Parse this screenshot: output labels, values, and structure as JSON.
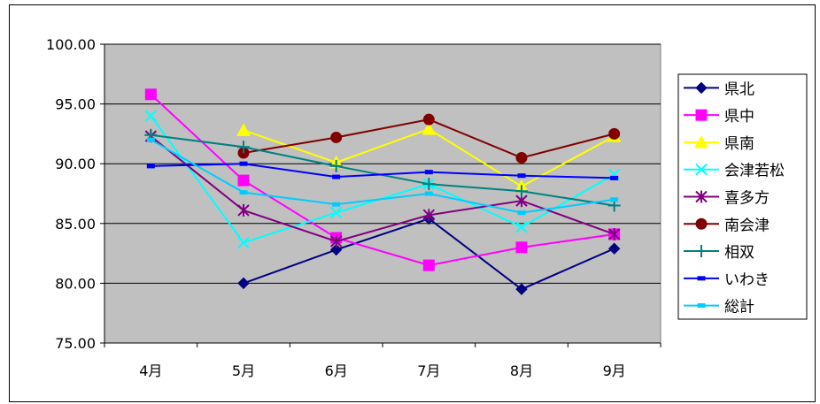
{
  "chart_data": {
    "type": "line",
    "title": "",
    "xlabel": "",
    "ylabel": "",
    "categories": [
      "4月",
      "5月",
      "6月",
      "7月",
      "8月",
      "9月"
    ],
    "ylim": [
      75,
      100
    ],
    "yticks": [
      "75.00",
      "80.00",
      "85.00",
      "90.00",
      "95.00",
      "100.00"
    ],
    "grid": true,
    "legend_position": "right",
    "plot_background": "#c0c0c0",
    "series": [
      {
        "name": "県北",
        "color": "#000080",
        "marker": "diamond",
        "values": [
          null,
          80.0,
          82.8,
          85.4,
          79.5,
          82.9
        ]
      },
      {
        "name": "県中",
        "color": "#ff00ff",
        "marker": "square",
        "values": [
          95.8,
          88.6,
          83.8,
          81.5,
          83.0,
          84.1
        ]
      },
      {
        "name": "県南",
        "color": "#ffff00",
        "marker": "triangle",
        "values": [
          null,
          92.8,
          90.1,
          92.9,
          88.1,
          92.3
        ]
      },
      {
        "name": "会津若松",
        "color": "#00ffff",
        "marker": "x",
        "values": [
          94.0,
          83.4,
          85.9,
          88.3,
          84.7,
          89.1
        ]
      },
      {
        "name": "喜多方",
        "color": "#800080",
        "marker": "star",
        "values": [
          92.3,
          86.1,
          83.5,
          85.7,
          86.9,
          84.1
        ]
      },
      {
        "name": "南会津",
        "color": "#800000",
        "marker": "circle",
        "values": [
          null,
          90.9,
          92.2,
          93.7,
          90.5,
          92.5
        ]
      },
      {
        "name": "相双",
        "color": "#008080",
        "marker": "plus",
        "values": [
          92.4,
          91.4,
          89.8,
          88.3,
          87.7,
          86.5
        ]
      },
      {
        "name": "いわき",
        "color": "#0000ff",
        "marker": "dash",
        "values": [
          89.8,
          90.0,
          88.9,
          89.3,
          89.0,
          88.8
        ]
      },
      {
        "name": "総計",
        "color": "#00ccff",
        "marker": "dash",
        "values": [
          92.0,
          87.6,
          86.6,
          87.5,
          85.9,
          87.0
        ]
      }
    ]
  }
}
